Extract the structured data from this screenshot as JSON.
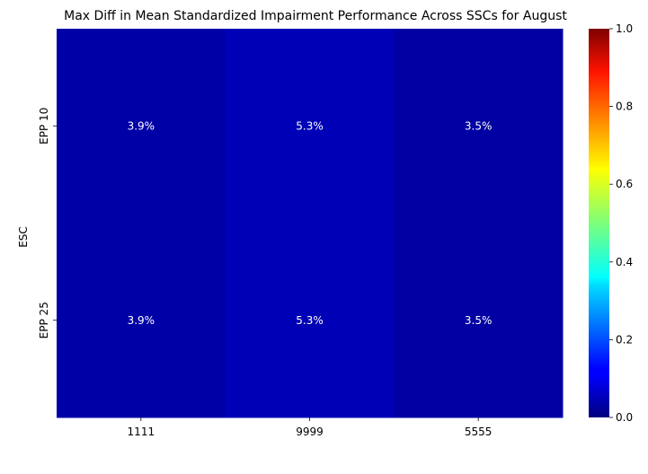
{
  "chart_data": {
    "type": "heatmap",
    "title": "Max Diff in Mean Standardized Impairment Performance Across SSCs for August",
    "xlabel": "",
    "ylabel": "ESC",
    "x_categories": [
      "1111",
      "9999",
      "5555"
    ],
    "y_categories": [
      "EPP 10",
      "EPP 25"
    ],
    "values": [
      [
        0.039,
        0.053,
        0.035
      ],
      [
        0.039,
        0.053,
        0.035
      ]
    ],
    "cell_labels": [
      [
        "3.9%",
        "5.3%",
        "3.5%"
      ],
      [
        "3.9%",
        "5.3%",
        "3.5%"
      ]
    ],
    "colormap": "jet",
    "vmin": 0.0,
    "vmax": 1.0,
    "colorbar_ticks": [
      "0.0",
      "0.2",
      "0.4",
      "0.6",
      "0.8",
      "1.0"
    ],
    "grid": false
  }
}
